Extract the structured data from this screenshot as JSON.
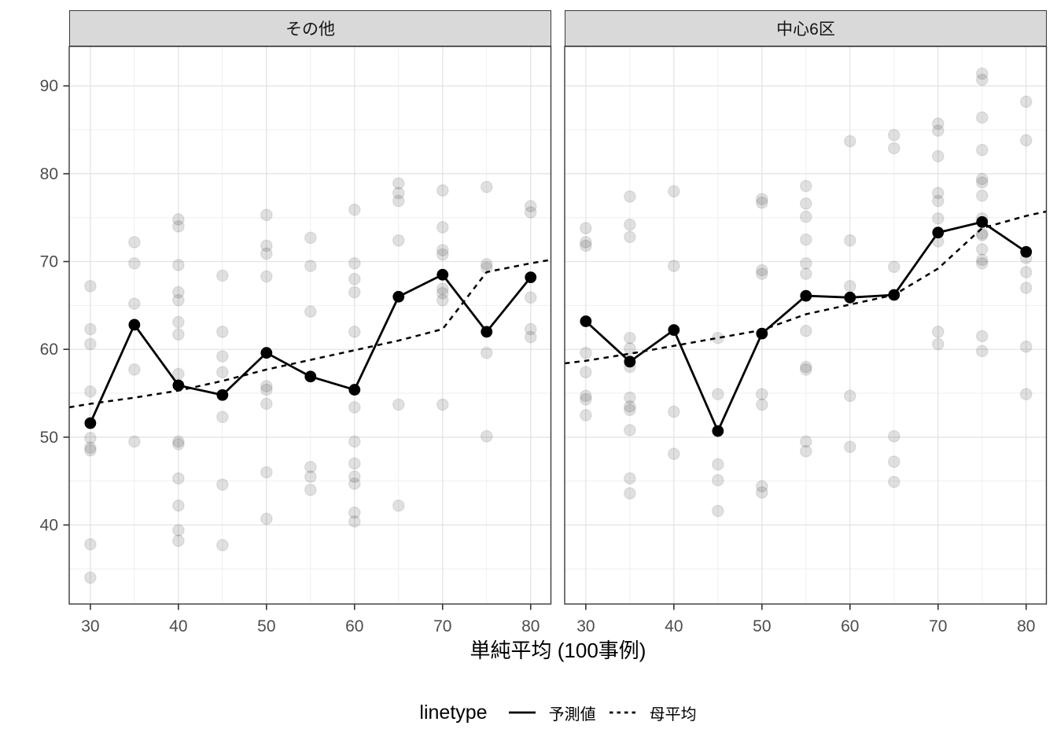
{
  "chart_data": {
    "type": "line",
    "subtype": "faceted line + jittered scatter (ggplot2 style), predicted means vs population means",
    "facets": [
      {
        "label": "その他",
        "predicted": [
          [
            30,
            51.6
          ],
          [
            35,
            62.8
          ],
          [
            40,
            55.9
          ],
          [
            45,
            54.8
          ],
          [
            50,
            59.6
          ],
          [
            55,
            56.9
          ],
          [
            60,
            55.4
          ],
          [
            65,
            66.0
          ],
          [
            70,
            68.5
          ],
          [
            75,
            62.0
          ],
          [
            80,
            68.2
          ]
        ],
        "population_mean": [
          [
            27.6,
            53.4
          ],
          [
            30,
            53.8
          ],
          [
            35,
            54.5
          ],
          [
            40,
            55.3
          ],
          [
            45,
            56.4
          ],
          [
            50,
            57.7
          ],
          [
            55,
            58.8
          ],
          [
            60,
            59.9
          ],
          [
            65,
            61.0
          ],
          [
            70,
            62.3
          ],
          [
            75,
            68.8
          ],
          [
            80,
            69.8
          ],
          [
            82.3,
            70.2
          ]
        ],
        "cases": [
          [
            30,
            67.2
          ],
          [
            30,
            62.3
          ],
          [
            30,
            60.6
          ],
          [
            30,
            55.2
          ],
          [
            30,
            49.9
          ],
          [
            30,
            48.8
          ],
          [
            30,
            48.5
          ],
          [
            30,
            37.8
          ],
          [
            30,
            34.0
          ],
          [
            35,
            72.2
          ],
          [
            35,
            69.8
          ],
          [
            35,
            65.2
          ],
          [
            35,
            57.7
          ],
          [
            35,
            49.5
          ],
          [
            40,
            74.8
          ],
          [
            40,
            74.0
          ],
          [
            40,
            69.6
          ],
          [
            40,
            66.5
          ],
          [
            40,
            65.6
          ],
          [
            40,
            63.1
          ],
          [
            40,
            61.7
          ],
          [
            40,
            57.2
          ],
          [
            40,
            49.5
          ],
          [
            40,
            49.2
          ],
          [
            40,
            45.3
          ],
          [
            40,
            42.2
          ],
          [
            40,
            39.4
          ],
          [
            40,
            38.2
          ],
          [
            45,
            68.4
          ],
          [
            45,
            62.0
          ],
          [
            45,
            59.2
          ],
          [
            45,
            57.4
          ],
          [
            45,
            52.3
          ],
          [
            45,
            44.6
          ],
          [
            45,
            37.7
          ],
          [
            50,
            75.3
          ],
          [
            50,
            71.8
          ],
          [
            50,
            70.9
          ],
          [
            50,
            68.3
          ],
          [
            50,
            55.8
          ],
          [
            50,
            55.4
          ],
          [
            50,
            53.8
          ],
          [
            50,
            46.0
          ],
          [
            50,
            40.7
          ],
          [
            55,
            72.7
          ],
          [
            55,
            69.5
          ],
          [
            55,
            64.3
          ],
          [
            55,
            46.6
          ],
          [
            55,
            45.5
          ],
          [
            55,
            44.0
          ],
          [
            60,
            75.9
          ],
          [
            60,
            69.8
          ],
          [
            60,
            68.0
          ],
          [
            60,
            66.5
          ],
          [
            60,
            62.0
          ],
          [
            60,
            53.4
          ],
          [
            60,
            49.5
          ],
          [
            60,
            47.0
          ],
          [
            60,
            45.5
          ],
          [
            60,
            44.7
          ],
          [
            60,
            41.4
          ],
          [
            60,
            40.4
          ],
          [
            65,
            78.9
          ],
          [
            65,
            77.8
          ],
          [
            65,
            76.9
          ],
          [
            65,
            72.4
          ],
          [
            65,
            53.7
          ],
          [
            65,
            42.2
          ],
          [
            70,
            78.1
          ],
          [
            70,
            73.9
          ],
          [
            70,
            71.3
          ],
          [
            70,
            70.8
          ],
          [
            70,
            66.9
          ],
          [
            70,
            66.4
          ],
          [
            70,
            65.6
          ],
          [
            70,
            53.7
          ],
          [
            75,
            78.5
          ],
          [
            75,
            69.7
          ],
          [
            75,
            69.3
          ],
          [
            75,
            59.6
          ],
          [
            75,
            50.1
          ],
          [
            80,
            76.3
          ],
          [
            80,
            75.6
          ],
          [
            80,
            65.9
          ],
          [
            80,
            62.3
          ],
          [
            80,
            61.4
          ]
        ]
      },
      {
        "label": "中心6区",
        "predicted": [
          [
            30,
            63.2
          ],
          [
            35,
            58.6
          ],
          [
            40,
            62.2
          ],
          [
            45,
            50.7
          ],
          [
            50,
            61.8
          ],
          [
            55,
            66.1
          ],
          [
            60,
            65.9
          ],
          [
            65,
            66.2
          ],
          [
            70,
            73.3
          ],
          [
            75,
            74.5
          ],
          [
            80,
            71.1
          ]
        ],
        "population_mean": [
          [
            27.6,
            58.4
          ],
          [
            30,
            58.7
          ],
          [
            35,
            59.5
          ],
          [
            40,
            60.4
          ],
          [
            45,
            61.3
          ],
          [
            50,
            62.2
          ],
          [
            55,
            64.0
          ],
          [
            60,
            65.1
          ],
          [
            65,
            66.2
          ],
          [
            70,
            69.2
          ],
          [
            75,
            73.8
          ],
          [
            80,
            75.2
          ],
          [
            82.3,
            75.7
          ]
        ],
        "cases": [
          [
            30,
            73.8
          ],
          [
            30,
            72.2
          ],
          [
            30,
            71.8
          ],
          [
            30,
            59.6
          ],
          [
            30,
            57.4
          ],
          [
            30,
            54.7
          ],
          [
            30,
            54.3
          ],
          [
            30,
            52.5
          ],
          [
            35,
            77.4
          ],
          [
            35,
            74.2
          ],
          [
            35,
            72.8
          ],
          [
            35,
            61.3
          ],
          [
            35,
            60.1
          ],
          [
            35,
            58.0
          ],
          [
            35,
            54.5
          ],
          [
            35,
            53.5
          ],
          [
            35,
            53.1
          ],
          [
            35,
            50.8
          ],
          [
            35,
            45.3
          ],
          [
            35,
            43.6
          ],
          [
            40,
            78.0
          ],
          [
            40,
            69.5
          ],
          [
            40,
            52.9
          ],
          [
            40,
            48.1
          ],
          [
            45,
            61.3
          ],
          [
            45,
            54.9
          ],
          [
            45,
            46.9
          ],
          [
            45,
            45.1
          ],
          [
            45,
            41.6
          ],
          [
            50,
            77.1
          ],
          [
            50,
            76.7
          ],
          [
            50,
            69.0
          ],
          [
            50,
            68.6
          ],
          [
            50,
            54.9
          ],
          [
            50,
            53.7
          ],
          [
            50,
            44.4
          ],
          [
            50,
            43.7
          ],
          [
            55,
            78.6
          ],
          [
            55,
            76.6
          ],
          [
            55,
            75.1
          ],
          [
            55,
            72.5
          ],
          [
            55,
            69.8
          ],
          [
            55,
            68.6
          ],
          [
            55,
            62.1
          ],
          [
            55,
            58.0
          ],
          [
            55,
            57.7
          ],
          [
            55,
            49.5
          ],
          [
            55,
            48.4
          ],
          [
            60,
            83.7
          ],
          [
            60,
            72.4
          ],
          [
            60,
            67.2
          ],
          [
            60,
            54.7
          ],
          [
            60,
            48.9
          ],
          [
            65,
            84.4
          ],
          [
            65,
            82.9
          ],
          [
            65,
            69.4
          ],
          [
            65,
            50.1
          ],
          [
            65,
            47.2
          ],
          [
            65,
            44.9
          ],
          [
            70,
            85.7
          ],
          [
            70,
            84.9
          ],
          [
            70,
            82.0
          ],
          [
            70,
            77.8
          ],
          [
            70,
            76.9
          ],
          [
            70,
            74.9
          ],
          [
            70,
            72.3
          ],
          [
            70,
            62.0
          ],
          [
            70,
            60.6
          ],
          [
            75,
            91.4
          ],
          [
            75,
            90.7
          ],
          [
            75,
            86.4
          ],
          [
            75,
            82.7
          ],
          [
            75,
            79.4
          ],
          [
            75,
            79.0
          ],
          [
            75,
            77.5
          ],
          [
            75,
            74.9
          ],
          [
            75,
            73.2
          ],
          [
            75,
            73.0
          ],
          [
            75,
            71.4
          ],
          [
            75,
            70.2
          ],
          [
            75,
            69.8
          ],
          [
            75,
            61.5
          ],
          [
            75,
            59.8
          ],
          [
            80,
            88.2
          ],
          [
            80,
            83.8
          ],
          [
            80,
            70.4
          ],
          [
            80,
            68.8
          ],
          [
            80,
            67.0
          ],
          [
            80,
            60.3
          ],
          [
            80,
            54.9
          ]
        ]
      }
    ],
    "x_axis": {
      "title": "単純平均 (100事例)",
      "ticks": [
        30,
        40,
        50,
        60,
        70,
        80
      ],
      "minor_ticks": [
        35,
        45,
        55,
        65,
        75
      ],
      "domain": [
        27.6,
        82.3
      ]
    },
    "y_axis": {
      "title": "",
      "ticks": [
        40,
        50,
        60,
        70,
        80,
        90
      ],
      "minor_ticks": [
        35,
        45,
        55,
        65,
        75,
        85
      ],
      "domain": [
        31.0,
        94.5
      ]
    },
    "legend": {
      "title": "linetype",
      "position": "bottom",
      "entries": [
        {
          "label": "予測値",
          "linetype": "solid"
        },
        {
          "label": "母平均",
          "linetype": "dashed"
        }
      ]
    },
    "style": {
      "panel_background": "#ffffff",
      "strip_background": "#d9d9d9",
      "border_color": "#3a3a3a",
      "grid_major_color": "#e2e2e2",
      "grid_minor_color": "#efefef",
      "line_color": "#000000",
      "case_dot_color": "rgba(0,0,0,0.12)",
      "case_dot_rim": "rgba(0,0,0,0.08)",
      "tick_label_color": "#4d4d4d",
      "grid": "on"
    }
  }
}
